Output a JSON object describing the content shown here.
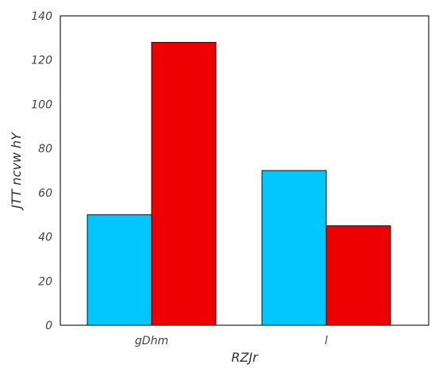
{
  "chart_data": {
    "type": "bar",
    "title": "",
    "xlabel": "RZJr",
    "ylabel": "JTT ncvw hY",
    "categories": [
      "gDhm",
      "l"
    ],
    "series": [
      {
        "values": [
          50,
          70
        ],
        "color": "#00c8ff"
      },
      {
        "values": [
          128,
          45
        ],
        "color": "#ee0000"
      }
    ],
    "ylim": [
      0,
      140
    ],
    "yticks": [
      0,
      20,
      40,
      60,
      80,
      100,
      120,
      140
    ],
    "grid": false,
    "legend": "none"
  }
}
